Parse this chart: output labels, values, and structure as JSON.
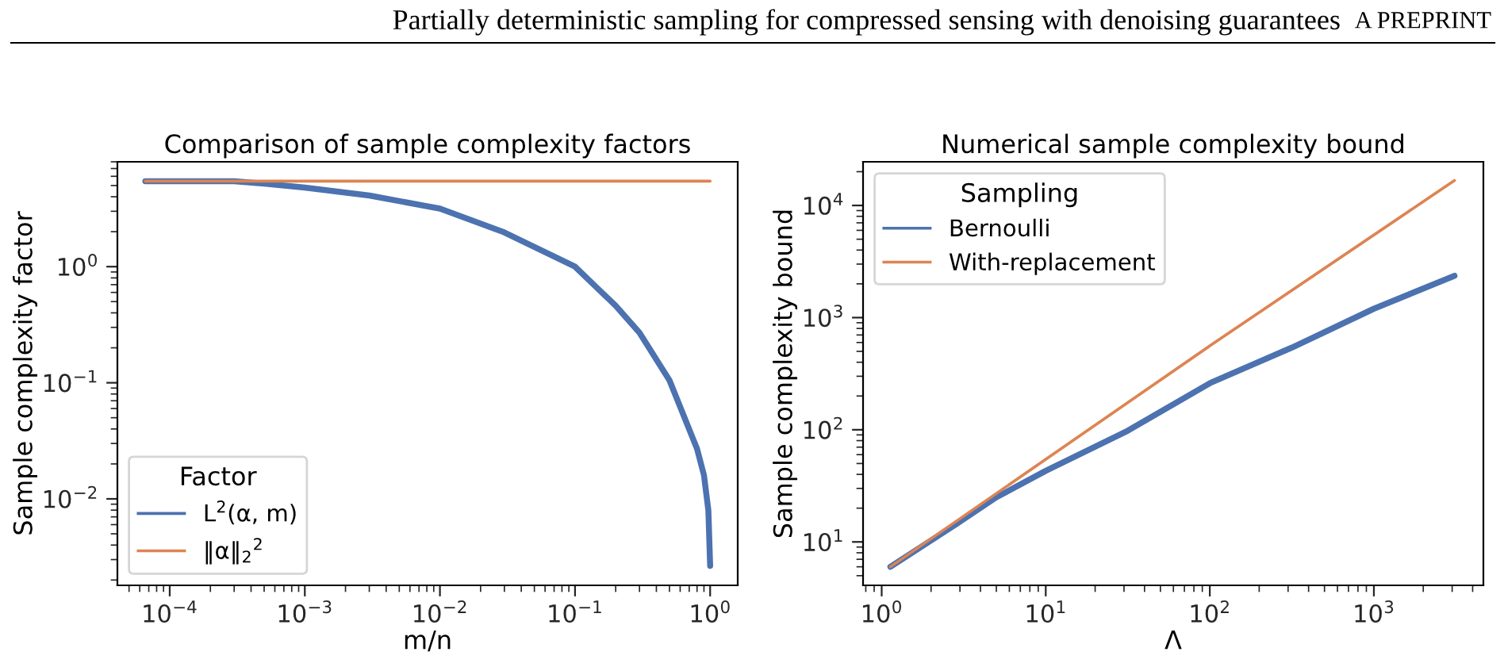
{
  "chart_data": [
    {
      "type": "line",
      "title": "Comparison of sample complexity factors",
      "xlabel": "m/n",
      "ylabel": "Sample complexity factor",
      "legend_title": "Factor",
      "legend": "bottom left",
      "log": "xy",
      "grid": false,
      "annotations": [
        "Partially deterministic sampling for compressed sensing with denoising guarantees",
        "A PREPRINT"
      ],
      "xlim": [
        4.1e-05,
        1.6
      ],
      "ylim": [
        0.0018,
        8.0
      ],
      "xticks": [
        {
          "value": 0.0001,
          "label": "10$^{−4}$"
        },
        {
          "value": 0.001,
          "label": "10$^{−3}$"
        },
        {
          "value": 0.01,
          "label": "10$^{−2}$"
        },
        {
          "value": 0.1,
          "label": "10$^{−1}$"
        },
        {
          "value": 1,
          "label": "10$^{0}$"
        }
      ],
      "yticks": [
        {
          "value": 0.01,
          "label": "10$^{−2}$"
        },
        {
          "value": 0.1,
          "label": "10$^{−1}$"
        },
        {
          "value": 1,
          "label": "10$^{0}$"
        }
      ],
      "series": [
        {
          "name": "L$^{2}$(α, m)",
          "color": "#4c72b0",
          "x": [
            6.6e-05,
            0.0003,
            0.0005,
            0.001,
            0.003,
            0.01,
            0.03,
            0.1,
            0.2,
            0.3,
            0.5,
            0.8,
            0.9,
            0.97,
            1.0
          ],
          "values": [
            5.45,
            5.45,
            5.2,
            4.8,
            4.1,
            3.16,
            1.97,
            1.0,
            0.46,
            0.27,
            0.105,
            0.027,
            0.016,
            0.008,
            0.00265
          ]
        },
        {
          "name": "‖α‖$_{2}$$^{2}$",
          "color": "#dd8452",
          "x": [
            6.6e-05,
            1.0
          ],
          "values": [
            5.45,
            5.45
          ]
        }
      ]
    },
    {
      "type": "line",
      "title": "Numerical sample complexity bound",
      "xlabel": "Λ",
      "ylabel": "Sample complexity bound",
      "legend_title": "Sampling",
      "legend": "top left",
      "log": "xy",
      "grid": false,
      "xlim": [
        0.77,
        4650
      ],
      "ylim": [
        4.1,
        24500
      ],
      "xticks": [
        {
          "value": 1,
          "label": "10$^{0}$"
        },
        {
          "value": 10,
          "label": "10$^{1}$"
        },
        {
          "value": 100,
          "label": "10$^{2}$"
        },
        {
          "value": 1000,
          "label": "10$^{3}$"
        }
      ],
      "yticks": [
        {
          "value": 10,
          "label": "10$^{1}$"
        },
        {
          "value": 100,
          "label": "10$^{2}$"
        },
        {
          "value": 1000,
          "label": "10$^{3}$"
        },
        {
          "value": 10000,
          "label": "10$^{4}$"
        }
      ],
      "series": [
        {
          "name": "Bernoulli",
          "color": "#4c72b0",
          "x": [
            1.13,
            2.87,
            5,
            10,
            31.6,
            100,
            316,
            1000,
            3100
          ],
          "values": [
            6.0,
            14.5,
            25,
            43,
            98,
            260,
            540,
            1200,
            2360
          ]
        },
        {
          "name": "With-replacement",
          "color": "#dd8452",
          "x": [
            1.13,
            100,
            3100
          ],
          "values": [
            6.0,
            560,
            16700
          ]
        }
      ]
    }
  ]
}
